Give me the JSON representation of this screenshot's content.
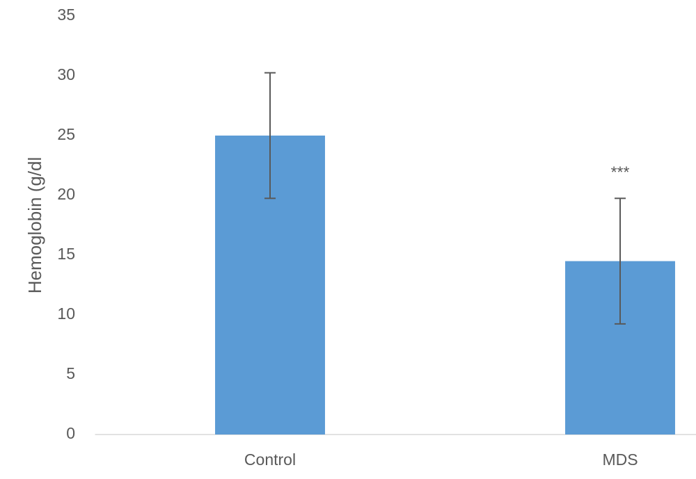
{
  "chart_data": {
    "type": "bar",
    "y_label": "Hemoglobin (g/dl",
    "categories": [
      "Control",
      "MDS"
    ],
    "values": [
      25,
      14.5
    ],
    "errors": [
      5.25,
      5.25
    ],
    "color": "#5b9bd5",
    "annotations": [
      {
        "text": "***",
        "category": 1
      }
    ],
    "ylim": [
      0,
      35
    ],
    "yticks": [
      0,
      5,
      10,
      15,
      20,
      25,
      30,
      35
    ],
    "grid": false
  }
}
